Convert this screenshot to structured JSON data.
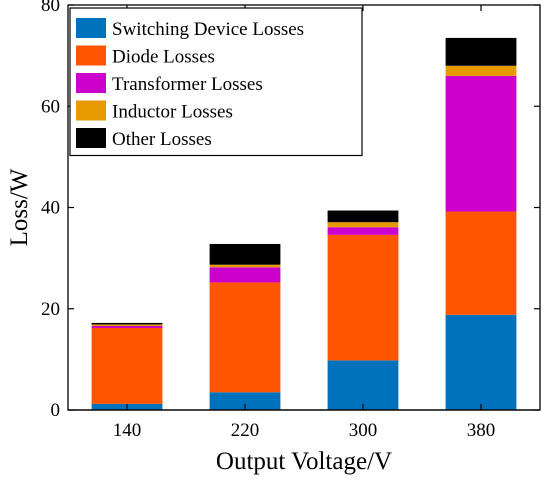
{
  "chart_data": {
    "type": "bar",
    "stacked": true,
    "categories": [
      "140",
      "220",
      "300",
      "380"
    ],
    "xlabel": "Output Voltage/V",
    "ylabel": "Loss/W",
    "ylim": [
      0,
      80
    ],
    "yticks": [
      0,
      20,
      40,
      60,
      80
    ],
    "grid": false,
    "legend_position": "top-left",
    "series": [
      {
        "name": "Switching Device Losses",
        "color": "#0072BD",
        "values": [
          1.2,
          3.5,
          9.8,
          18.8
        ]
      },
      {
        "name": "Diode Losses",
        "color": "#FF5500",
        "values": [
          15.0,
          21.7,
          24.8,
          20.4
        ]
      },
      {
        "name": "Transformer Losses",
        "color": "#CC00CC",
        "values": [
          0.4,
          3.0,
          1.5,
          26.8
        ]
      },
      {
        "name": "Inductor Losses",
        "color": "#E69A00",
        "values": [
          0.3,
          0.5,
          1.0,
          2.0
        ]
      },
      {
        "name": "Other Losses",
        "color": "#000000",
        "values": [
          0.3,
          4.1,
          2.3,
          5.5
        ]
      }
    ]
  }
}
